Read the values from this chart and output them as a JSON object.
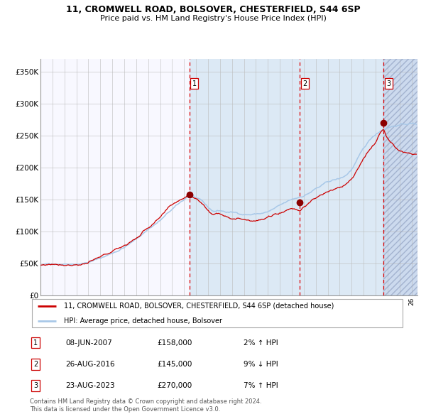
{
  "title1": "11, CROMWELL ROAD, BOLSOVER, CHESTERFIELD, S44 6SP",
  "title2": "Price paid vs. HM Land Registry's House Price Index (HPI)",
  "ylabel_ticks": [
    "£0",
    "£50K",
    "£100K",
    "£150K",
    "£200K",
    "£250K",
    "£300K",
    "£350K"
  ],
  "ytick_vals": [
    0,
    50000,
    100000,
    150000,
    200000,
    250000,
    300000,
    350000
  ],
  "ylim": [
    0,
    370000
  ],
  "xlim_start": 1995.0,
  "xlim_end": 2026.5,
  "hpi_line_color": "#a8c8e8",
  "price_line_color": "#cc0000",
  "marker_color": "#8b0000",
  "transaction_dates": [
    2007.44,
    2016.65,
    2023.64
  ],
  "transaction_prices": [
    158000,
    145000,
    270000
  ],
  "transaction_labels": [
    "1",
    "2",
    "3"
  ],
  "legend_line1": "11, CROMWELL ROAD, BOLSOVER, CHESTERFIELD, S44 6SP (detached house)",
  "legend_line2": "HPI: Average price, detached house, Bolsover",
  "table_entries": [
    {
      "num": "1",
      "date": "08-JUN-2007",
      "price": "£158,000",
      "change": "2% ↑ HPI"
    },
    {
      "num": "2",
      "date": "26-AUG-2016",
      "price": "£145,000",
      "change": "9% ↓ HPI"
    },
    {
      "num": "3",
      "date": "23-AUG-2023",
      "price": "£270,000",
      "change": "7% ↑ HPI"
    }
  ],
  "footnote1": "Contains HM Land Registry data © Crown copyright and database right 2024.",
  "footnote2": "This data is licensed under the Open Government Licence v3.0.",
  "bg_chart_white": "#f8f8ff",
  "bg_chart_blue": "#dce9f5",
  "bg_hatched_color": "#ccdaee",
  "grid_color": "#bbbbbb",
  "dashed_line_color": "#dd0000",
  "shade_start": 2007.44,
  "shade_end": 2023.64,
  "hpi_anchors_t": [
    1995,
    1996,
    1997,
    1998,
    1999,
    2000,
    2001,
    2002,
    2003,
    2004,
    2005,
    2006,
    2007,
    2007.5,
    2008,
    2008.5,
    2009,
    2009.5,
    2010,
    2010.5,
    2011,
    2011.5,
    2012,
    2012.5,
    2013,
    2013.5,
    2014,
    2014.5,
    2015,
    2015.5,
    2016,
    2016.5,
    2017,
    2017.5,
    2018,
    2018.5,
    2019,
    2019.5,
    2020,
    2020.5,
    2021,
    2021.5,
    2022,
    2022.5,
    2023,
    2023.5,
    2024,
    2024.5,
    2025,
    2025.5,
    2026,
    2026.4
  ],
  "hpi_anchors_v": [
    47000,
    49000,
    51000,
    53000,
    56000,
    62000,
    70000,
    80000,
    92000,
    108000,
    122000,
    138000,
    152000,
    160000,
    155000,
    148000,
    138000,
    132000,
    133000,
    131000,
    130000,
    129000,
    128000,
    128000,
    129000,
    130000,
    132000,
    136000,
    140000,
    144000,
    148000,
    151000,
    155000,
    160000,
    166000,
    170000,
    175000,
    178000,
    180000,
    185000,
    195000,
    210000,
    225000,
    238000,
    248000,
    255000,
    260000,
    263000,
    265000,
    266000,
    267000,
    266000
  ],
  "price_anchors_t": [
    1995,
    1996,
    1997,
    1998,
    1999,
    2000,
    2001,
    2002,
    2003,
    2004,
    2005,
    2006,
    2007,
    2007.44,
    2008,
    2008.5,
    2009,
    2009.5,
    2010,
    2010.5,
    2011,
    2011.5,
    2012,
    2012.5,
    2013,
    2013.5,
    2014,
    2014.5,
    2015,
    2015.5,
    2016,
    2016.65,
    2017,
    2017.5,
    2018,
    2018.5,
    2019,
    2019.5,
    2020,
    2020.5,
    2021,
    2021.5,
    2022,
    2022.5,
    2023,
    2023.64,
    2024,
    2024.5,
    2025,
    2025.5,
    2026,
    2026.4
  ],
  "price_anchors_v": [
    47000,
    49500,
    51500,
    53500,
    57000,
    63000,
    71000,
    81000,
    93000,
    110000,
    124000,
    140000,
    152000,
    158000,
    153000,
    146000,
    136000,
    130000,
    131000,
    129000,
    128000,
    127000,
    127000,
    127000,
    128000,
    129000,
    131000,
    135000,
    139000,
    143000,
    147000,
    145000,
    152000,
    158000,
    164000,
    168000,
    173000,
    176000,
    178000,
    183000,
    193000,
    208000,
    222000,
    236000,
    246000,
    270000,
    255000,
    245000,
    237000,
    233000,
    230000,
    228000
  ]
}
